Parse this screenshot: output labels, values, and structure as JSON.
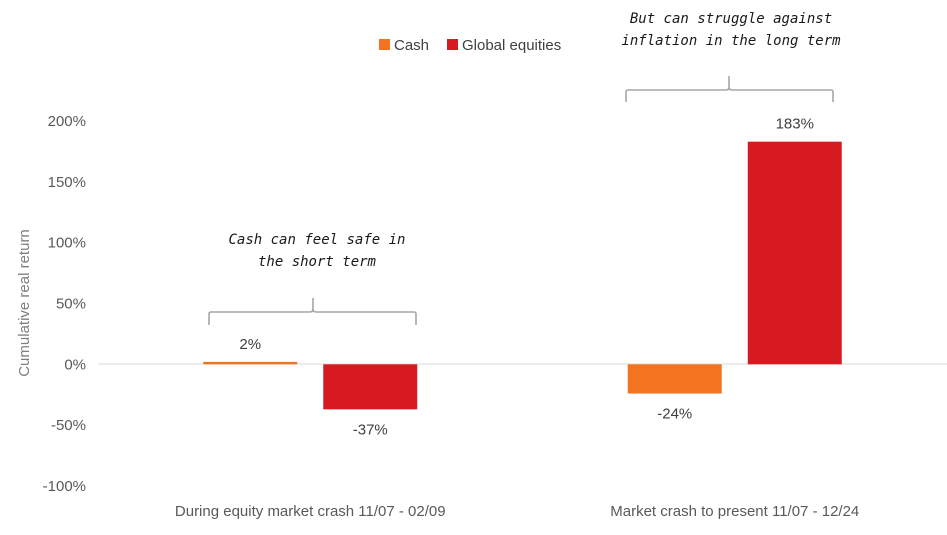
{
  "chart_data": {
    "type": "bar",
    "categories": [
      "During equity market crash 11/07 - 02/09",
      "Market crash to present 11/07 - 12/24"
    ],
    "series": [
      {
        "name": "Cash",
        "values": [
          2,
          -24
        ],
        "labels": [
          "2%",
          "-24%"
        ],
        "color": "#f47321"
      },
      {
        "name": "Global equities",
        "values": [
          -37,
          183
        ],
        "labels": [
          "-37%",
          "183%"
        ],
        "color": "#d71920"
      }
    ],
    "ylabel": "Cumulative real return",
    "ylim": [
      -100,
      200
    ],
    "yticks": [
      200,
      150,
      100,
      50,
      0,
      -50,
      -100
    ],
    "ytick_labels": [
      "200%",
      "150%",
      "100%",
      "50%",
      "0%",
      "-50%",
      "-100%"
    ],
    "legend_position": "top",
    "grid": false,
    "annotations": [
      {
        "lines": [
          "Cash can feel safe in",
          "the short term"
        ],
        "category": 0
      },
      {
        "lines": [
          "But can struggle against",
          "inflation in the long term"
        ],
        "category": 1
      }
    ]
  }
}
